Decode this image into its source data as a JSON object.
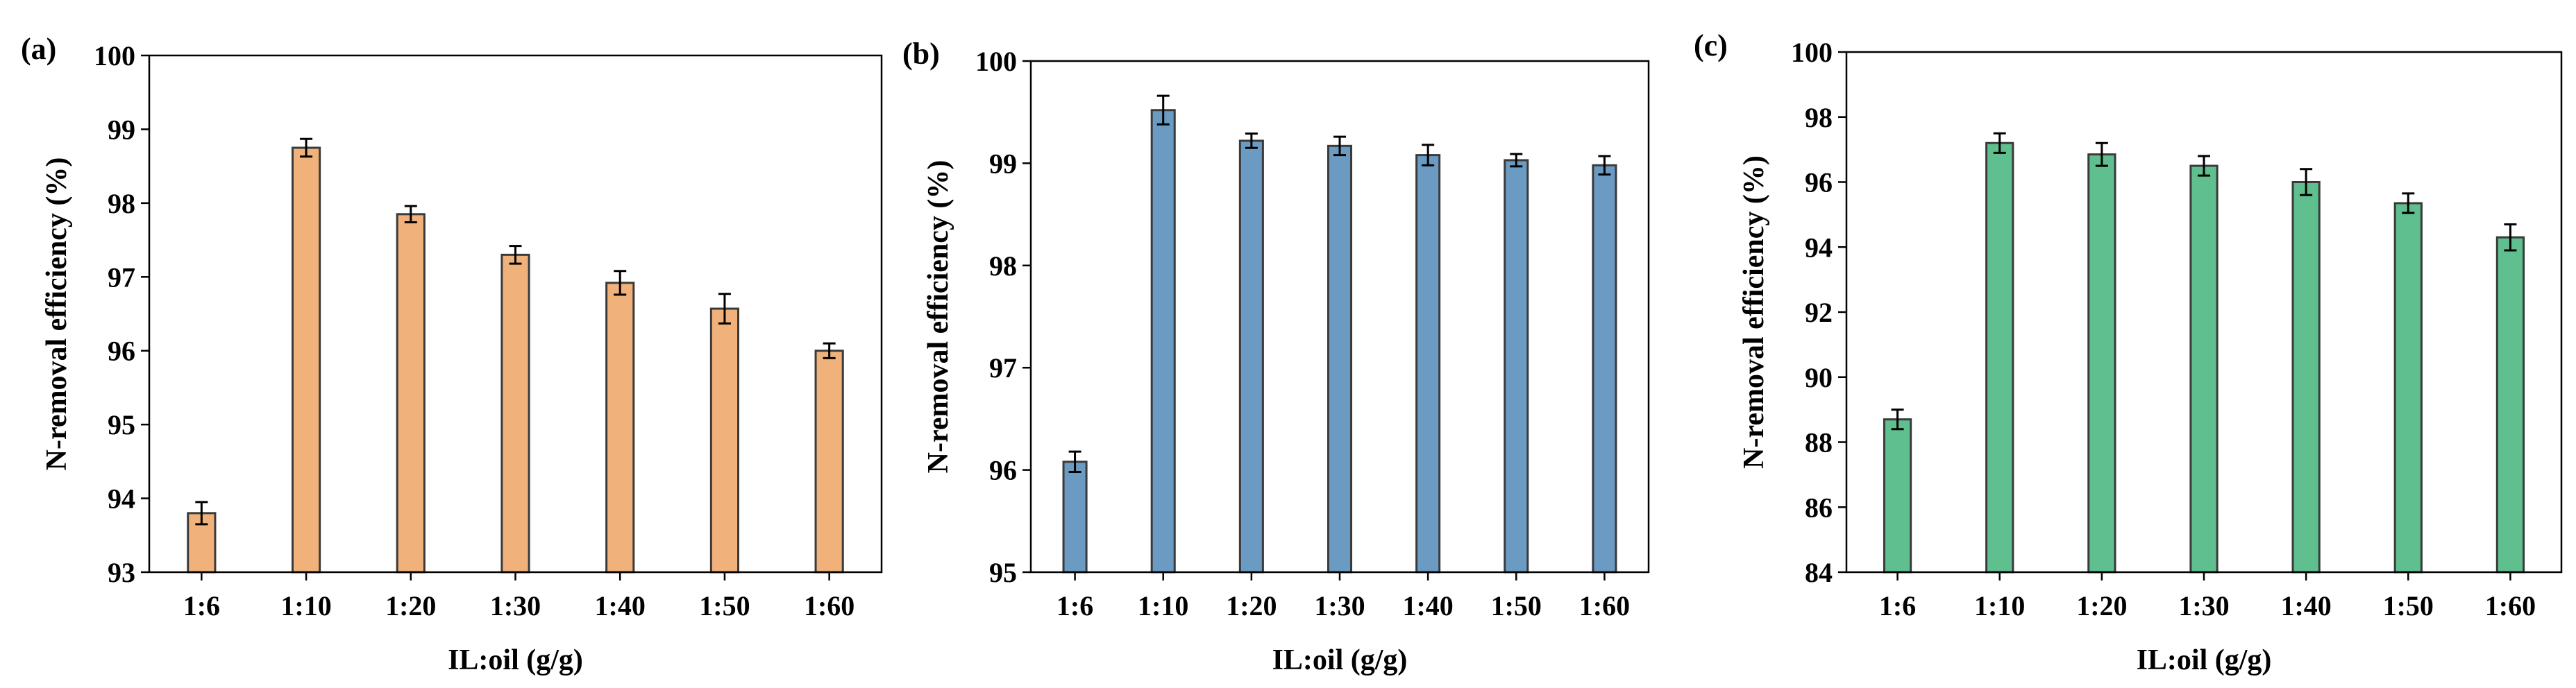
{
  "chart_data": [
    {
      "type": "bar",
      "panel_label": "(a)",
      "xlabel": "IL:oil (g/g)",
      "ylabel": "N-removal efficiency (%)",
      "categories": [
        "1:6",
        "1:10",
        "1:20",
        "1:30",
        "1:40",
        "1:50",
        "1:60"
      ],
      "values": [
        93.8,
        98.75,
        97.85,
        97.3,
        96.92,
        96.57,
        96.0
      ],
      "errors": [
        0.15,
        0.12,
        0.11,
        0.12,
        0.16,
        0.2,
        0.1
      ],
      "ylim": [
        93,
        100
      ],
      "yticks": [
        93,
        94,
        95,
        96,
        97,
        98,
        99,
        100
      ],
      "bar_color": "#f0b27a",
      "legend": "none",
      "grid": false
    },
    {
      "type": "bar",
      "panel_label": "(b)",
      "xlabel": "IL:oil (g/g)",
      "ylabel": "N-removal efficiency (%)",
      "categories": [
        "1:6",
        "1:10",
        "1:20",
        "1:30",
        "1:40",
        "1:50",
        "1:60"
      ],
      "values": [
        96.08,
        99.52,
        99.22,
        99.17,
        99.08,
        99.03,
        98.98
      ],
      "errors": [
        0.1,
        0.14,
        0.07,
        0.09,
        0.1,
        0.06,
        0.09
      ],
      "ylim": [
        95,
        100
      ],
      "yticks": [
        95,
        96,
        97,
        98,
        99,
        100
      ],
      "bar_color": "#6b9bc3",
      "legend": "none",
      "grid": false
    },
    {
      "type": "bar",
      "panel_label": "(c)",
      "xlabel": "IL:oil (g/g)",
      "ylabel": "N-removal efficiency (%)",
      "categories": [
        "1:6",
        "1:10",
        "1:20",
        "1:30",
        "1:40",
        "1:50",
        "1:60"
      ],
      "values": [
        88.7,
        97.2,
        96.85,
        96.5,
        96.0,
        95.35,
        94.3
      ],
      "errors": [
        0.3,
        0.3,
        0.35,
        0.3,
        0.4,
        0.3,
        0.4
      ],
      "ylim": [
        84,
        100
      ],
      "yticks": [
        84,
        86,
        88,
        90,
        92,
        94,
        96,
        98,
        100
      ],
      "bar_color": "#5fbf8e",
      "legend": "none",
      "grid": false
    }
  ]
}
